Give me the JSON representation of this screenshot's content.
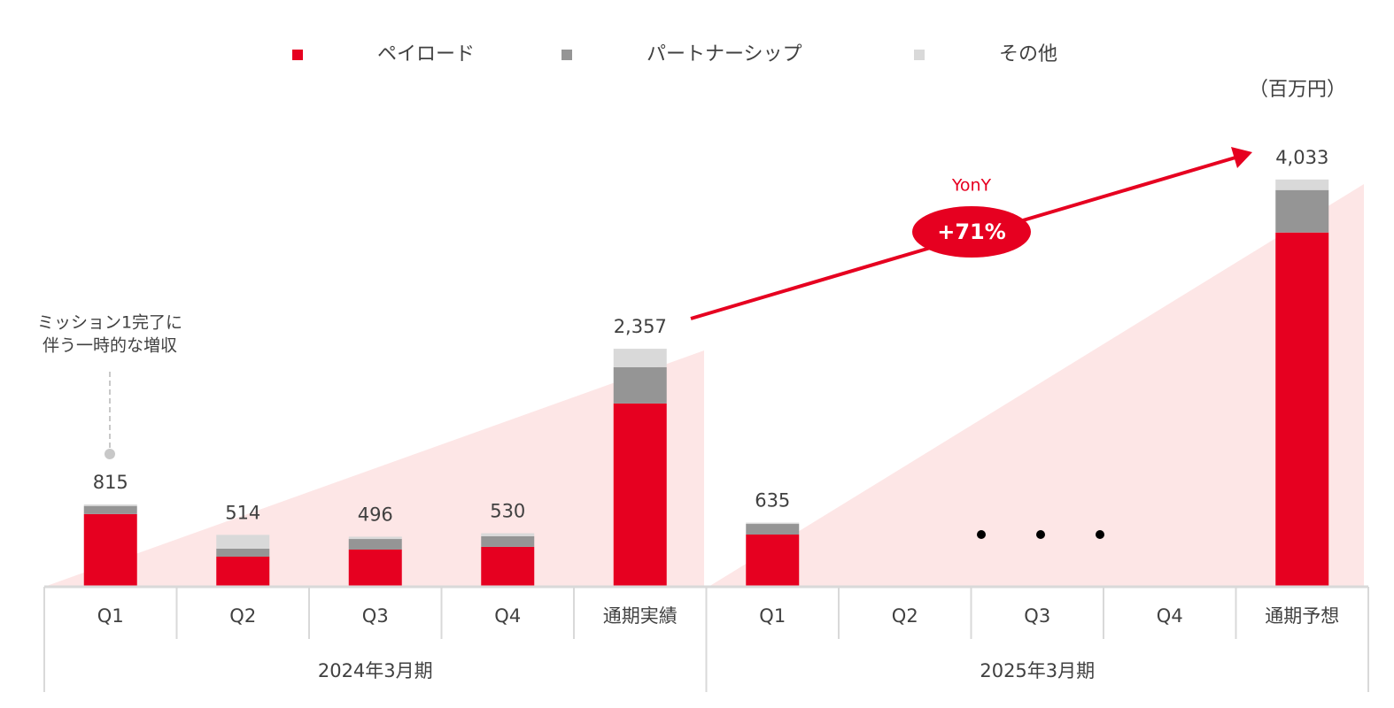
{
  "chart_data": {
    "type": "stacked_bar",
    "unit": "（百万円）",
    "categories": [
      "Q1",
      "Q2",
      "Q3",
      "Q4",
      "通期実績",
      "Q1",
      "Q2",
      "Q3",
      "Q4",
      "通期予想"
    ],
    "groups": [
      {
        "label": "2024年3月期",
        "size": 5
      },
      {
        "label": "2025年3月期",
        "size": 5
      }
    ],
    "series": [
      {
        "name": "ペイロード",
        "color": "#e60020",
        "values": [
          720,
          298,
          368,
          395,
          1815,
          517,
          null,
          null,
          null,
          3508
        ]
      },
      {
        "name": "パートナーシップ",
        "color": "#959595",
        "values": [
          80,
          79,
          105,
          105,
          360,
          105,
          null,
          null,
          null,
          421
        ]
      },
      {
        "name": "その他",
        "color": "#d9d9d9",
        "values": [
          15,
          137,
          23,
          30,
          182,
          13,
          null,
          null,
          null,
          104
        ]
      }
    ],
    "totals": [
      815,
      514,
      496,
      530,
      2357,
      635,
      null,
      null,
      null,
      4033
    ],
    "total_labels": [
      "815",
      "514",
      "496",
      "530",
      "2,357",
      "635",
      null,
      null,
      null,
      "4,033"
    ],
    "ylim": [
      0,
      5000
    ],
    "annotations": {
      "note_line1": "ミッション1完了に",
      "note_line2": "伴う一時的な増収",
      "growth_caption": "YonY",
      "growth": "+71%"
    }
  }
}
